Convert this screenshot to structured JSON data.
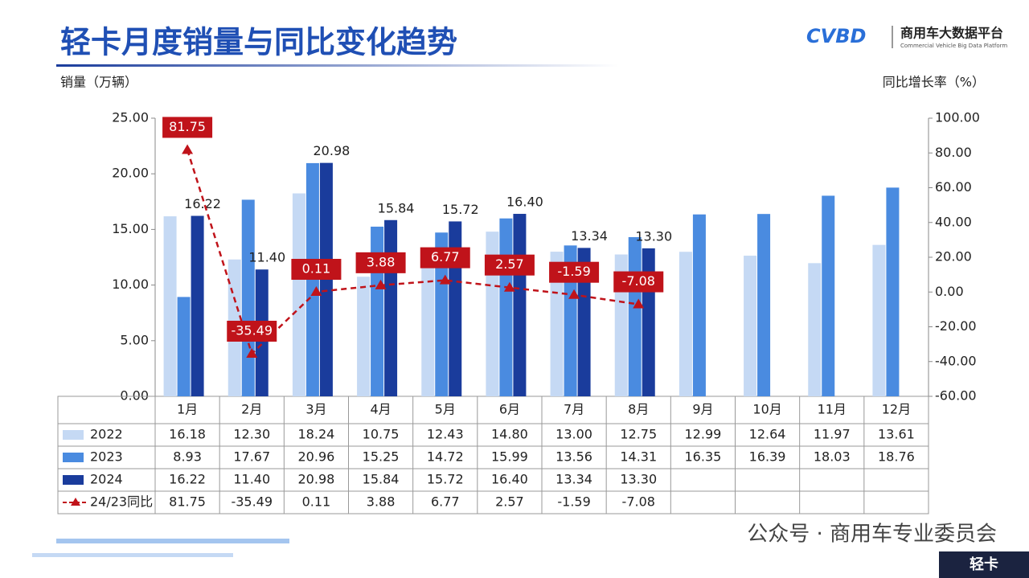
{
  "header": {
    "title": "轻卡月度销量与同比变化趋势",
    "logo": "CVBD",
    "logo_name": "商用车大数据平台",
    "logo_subtitle": "Commercial Vehicle Big Data Platform"
  },
  "chart_data": {
    "type": "bar_line",
    "ylabel": "销量（万辆）",
    "y2label": "同比增长率（%）",
    "categories": [
      "1月",
      "2月",
      "3月",
      "4月",
      "5月",
      "6月",
      "7月",
      "8月",
      "9月",
      "10月",
      "11月",
      "12月"
    ],
    "series": [
      {
        "name": "2022",
        "color": "#c5d9f4",
        "values": [
          16.18,
          12.3,
          18.24,
          10.75,
          12.43,
          14.8,
          13.0,
          12.75,
          12.99,
          12.64,
          11.97,
          13.61
        ],
        "value_labels": [
          "16.18",
          "12.30",
          "18.24",
          "10.75",
          "12.43",
          "14.80",
          "13.00",
          "12.75",
          "12.99",
          "12.64",
          "11.97",
          "13.61"
        ]
      },
      {
        "name": "2023",
        "color": "#4a8be0",
        "values": [
          8.93,
          17.67,
          20.96,
          15.25,
          14.72,
          15.99,
          13.56,
          14.31,
          16.35,
          16.39,
          18.03,
          18.76
        ],
        "value_labels": [
          "8.93",
          "17.67",
          "20.96",
          "15.25",
          "14.72",
          "15.99",
          "13.56",
          "14.31",
          "16.35",
          "16.39",
          "18.03",
          "18.76"
        ]
      },
      {
        "name": "2024",
        "color": "#1a3c9c",
        "values": [
          16.22,
          11.4,
          20.98,
          15.84,
          15.72,
          16.4,
          13.34,
          13.3,
          null,
          null,
          null,
          null
        ],
        "value_labels": [
          "16.22",
          "11.40",
          "20.98",
          "15.84",
          "15.72",
          "16.40",
          "13.34",
          "13.30",
          null,
          null,
          null,
          null
        ]
      },
      {
        "name": "24/23同比",
        "color": "#c0131a",
        "axis": "y2",
        "dashed": true,
        "values": [
          81.75,
          -35.49,
          0.11,
          3.88,
          6.77,
          2.57,
          -1.59,
          -7.08,
          null,
          null,
          null,
          null
        ],
        "value_labels": [
          "81.75",
          "-35.49",
          "0.11",
          "3.88",
          "6.77",
          "2.57",
          "-1.59",
          "-7.08",
          null,
          null,
          null,
          null
        ]
      }
    ],
    "ylim": [
      0,
      25
    ],
    "yticks": [
      {
        "value": 0,
        "label": "0.00"
      },
      {
        "value": 5,
        "label": "5.00"
      },
      {
        "value": 10,
        "label": "10.00"
      },
      {
        "value": 15,
        "label": "15.00"
      },
      {
        "value": 20,
        "label": "20.00"
      },
      {
        "value": 25,
        "label": "25.00"
      }
    ],
    "y2lim": [
      -60,
      100
    ],
    "y2ticks": [
      {
        "value": -60,
        "label": "-60.00"
      },
      {
        "value": -40,
        "label": "-40.00"
      },
      {
        "value": -20,
        "label": "-20.00"
      },
      {
        "value": 0,
        "label": "0.00"
      },
      {
        "value": 20,
        "label": "20.00"
      },
      {
        "value": 40,
        "label": "40.00"
      },
      {
        "value": 60,
        "label": "60.00"
      },
      {
        "value": 80,
        "label": "80.00"
      },
      {
        "value": 100,
        "label": "100.00"
      }
    ]
  },
  "footer": {
    "watermark": "公众号 · 商用车专业委员会",
    "tag": "轻卡"
  }
}
